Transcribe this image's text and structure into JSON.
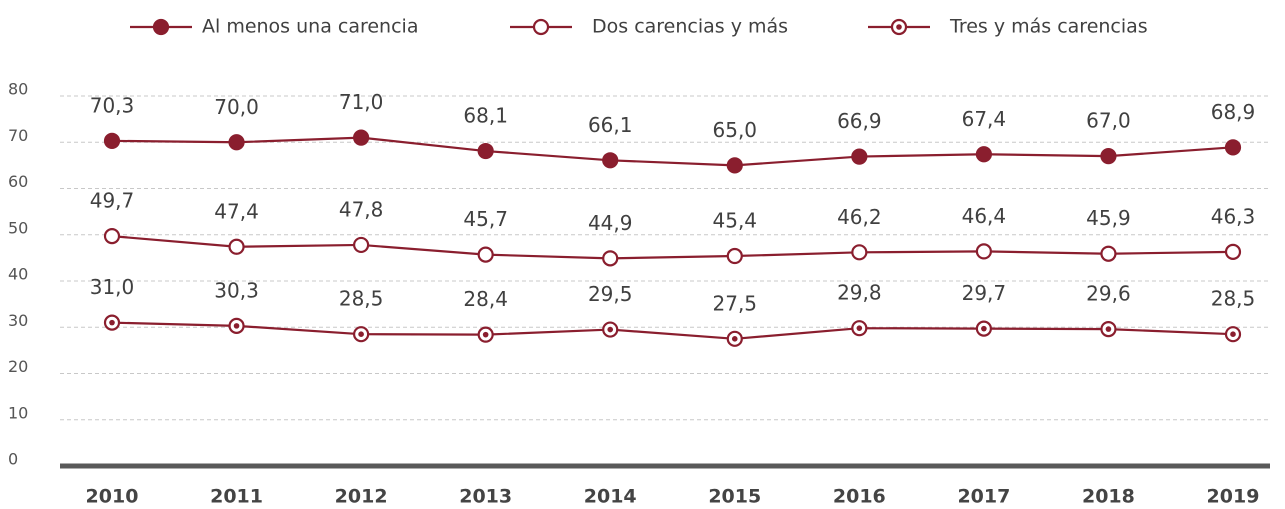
{
  "chart_data": {
    "type": "line",
    "categories": [
      "2010",
      "2011",
      "2012",
      "2013",
      "2014",
      "2015",
      "2016",
      "2017",
      "2018",
      "2019"
    ],
    "series": [
      {
        "name": "Al menos una carencia",
        "color": "#8a1e2e",
        "marker": "filled",
        "values": [
          70.3,
          70.0,
          71.0,
          68.1,
          66.1,
          65.0,
          66.9,
          67.4,
          67.0,
          68.9
        ],
        "value_labels": [
          "70,3",
          "70,0",
          "71,0",
          "68,1",
          "66,1",
          "65,0",
          "66,9",
          "67,4",
          "67,0",
          "68,9"
        ]
      },
      {
        "name": "Dos carencias y más",
        "color": "#8a1e2e",
        "marker": "open",
        "values": [
          49.7,
          47.4,
          47.8,
          45.7,
          44.9,
          45.4,
          46.2,
          46.4,
          45.9,
          46.3
        ],
        "value_labels": [
          "49,7",
          "47,4",
          "47,8",
          "45,7",
          "44,9",
          "45,4",
          "46,2",
          "46,4",
          "45,9",
          "46,3"
        ]
      },
      {
        "name": "Tres y más carencias",
        "color": "#8a1e2e",
        "marker": "dotted",
        "values": [
          31.0,
          30.3,
          28.5,
          28.4,
          29.5,
          27.5,
          29.8,
          29.7,
          29.6,
          28.5
        ],
        "value_labels": [
          "31,0",
          "30,3",
          "28,5",
          "28,4",
          "29,5",
          "27,5",
          "29,8",
          "29,7",
          "29,6",
          "28,5"
        ]
      }
    ],
    "ylim": [
      0,
      80
    ],
    "yticks": [
      0,
      10,
      20,
      30,
      40,
      50,
      60,
      70,
      80
    ],
    "grid": true,
    "legend": "top"
  }
}
